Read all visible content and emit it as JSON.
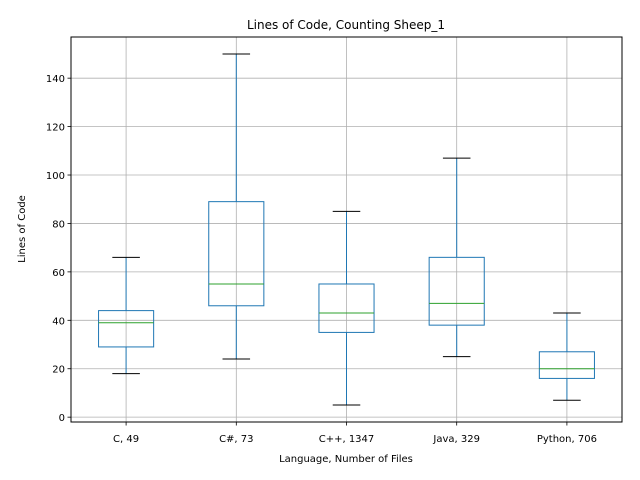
{
  "chart_data": {
    "type": "box",
    "title": "Lines of Code, Counting Sheep_1",
    "xlabel": "Language, Number of Files",
    "ylabel": "Lines of Code",
    "ylim": [
      -2,
      157
    ],
    "yticks": [
      0,
      20,
      40,
      60,
      80,
      100,
      120,
      140
    ],
    "grid": true,
    "categories": [
      "C, 49",
      "C#, 73",
      "C++, 1347",
      "Java, 329",
      "Python, 706"
    ],
    "boxes": [
      {
        "category": "C, 49",
        "whisker_low": 18,
        "q1": 29,
        "median": 39,
        "q3": 44,
        "whisker_high": 66
      },
      {
        "category": "C#, 73",
        "whisker_low": 24,
        "q1": 46,
        "median": 55,
        "q3": 89,
        "whisker_high": 150
      },
      {
        "category": "C++, 1347",
        "whisker_low": 5,
        "q1": 35,
        "median": 43,
        "q3": 55,
        "whisker_high": 85
      },
      {
        "category": "Java, 329",
        "whisker_low": 25,
        "q1": 38,
        "median": 47,
        "q3": 66,
        "whisker_high": 107
      },
      {
        "category": "Python, 706",
        "whisker_low": 7,
        "q1": 16,
        "median": 20,
        "q3": 27,
        "whisker_high": 43
      }
    ],
    "colors": {
      "box": "#1f77b4",
      "median": "#2ca02c",
      "cap": "#000000",
      "grid": "#b0b0b0"
    }
  }
}
